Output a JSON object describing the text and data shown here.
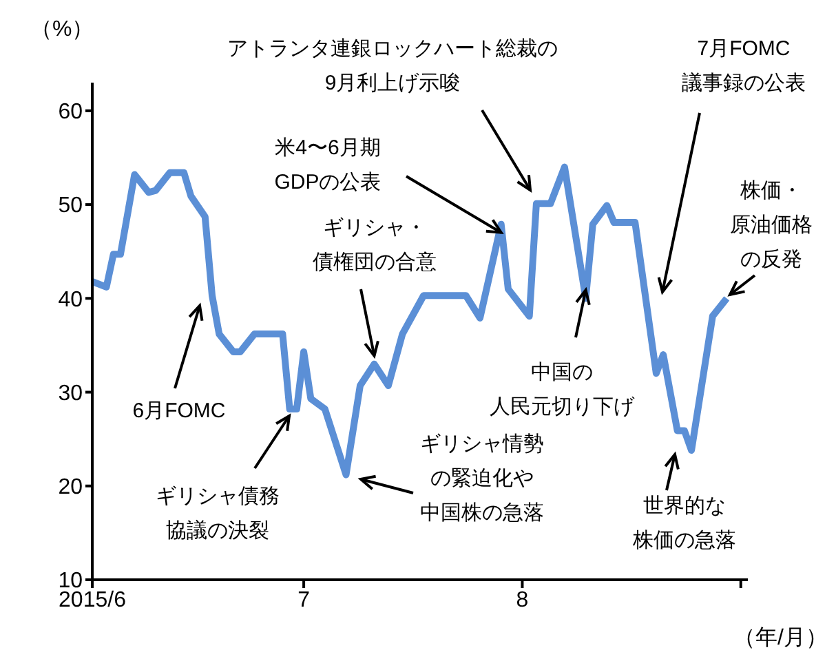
{
  "chart_data": {
    "type": "line",
    "xlabel": "（年/月）",
    "ylabel": "（%）",
    "x": [
      "2015-06-01",
      "2015-06-03",
      "2015-06-04",
      "2015-06-05",
      "2015-06-07",
      "2015-06-09",
      "2015-06-10",
      "2015-06-12",
      "2015-06-14",
      "2015-06-15",
      "2015-06-17",
      "2015-06-18",
      "2015-06-19",
      "2015-06-21",
      "2015-06-22",
      "2015-06-24",
      "2015-06-28",
      "2015-06-29",
      "2015-06-30",
      "2015-07-01",
      "2015-07-02",
      "2015-07-04",
      "2015-07-07",
      "2015-07-09",
      "2015-07-11",
      "2015-07-13",
      "2015-07-15",
      "2015-07-18",
      "2015-07-24",
      "2015-07-26",
      "2015-07-29",
      "2015-07-30",
      "2015-08-02",
      "2015-08-03",
      "2015-08-05",
      "2015-08-07",
      "2015-08-10",
      "2015-08-11",
      "2015-08-13",
      "2015-08-14",
      "2015-08-17",
      "2015-08-20",
      "2015-08-21",
      "2015-08-23",
      "2015-08-24",
      "2015-08-25",
      "2015-08-28",
      "2015-08-30"
    ],
    "values": [
      41.8,
      41.2,
      44.7,
      44.7,
      53.2,
      51.3,
      51.5,
      53.4,
      53.4,
      50.9,
      48.7,
      40.3,
      36.2,
      34.3,
      34.3,
      36.2,
      36.2,
      28.2,
      28.2,
      34.3,
      29.3,
      28.2,
      21.2,
      30.7,
      33,
      30.7,
      36.2,
      40.3,
      40.3,
      37.9,
      47.9,
      41,
      38.1,
      50.1,
      50.1,
      54,
      40,
      47.9,
      49.9,
      48.1,
      48.1,
      32,
      34,
      25.9,
      25.9,
      23.8,
      38.1,
      40
    ],
    "color": "#5b8fd6",
    "xlim": [
      "2015-06-01",
      "2015-09-02"
    ],
    "xticks": [
      {
        "value": "2015-06-01",
        "label": "2015/6"
      },
      {
        "value": "2015-07-01",
        "label": "7"
      },
      {
        "value": "2015-08-01",
        "label": "8"
      },
      {
        "value": "2015-09-01",
        "label": null
      }
    ],
    "ylim": [
      10,
      63
    ],
    "yticks": [
      10,
      20,
      30,
      40,
      50,
      60
    ],
    "grid": false,
    "legend": false,
    "annotations": [
      "6月FOMC",
      "ギリシャ債務協議の決裂",
      {
        "text": "ギリシャ・債権団の合意",
        "x": "2015-07-11",
        "y": 33
      },
      "ギリシャ情勢の緊迫化や中国株の急落",
      {
        "text": "米4〜6月期 GDPの公表",
        "x": "2015-07-29",
        "y": 47.9
      },
      "アトランタ連銀ロックハート総裁の9月利上げ示唆",
      {
        "text": "中国の人民元切り下げ",
        "x": "2015-08-10",
        "y": 40
      },
      "7月FOMC 議事録の公表",
      "株価・原油価格の反発",
      "世界的な株価の急落"
    ]
  }
}
